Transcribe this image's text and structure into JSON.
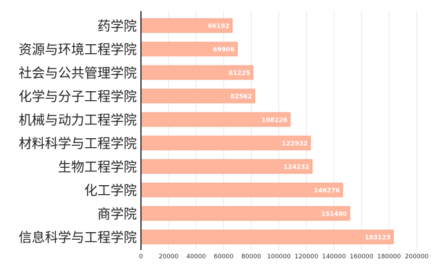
{
  "chart_data": {
    "type": "bar",
    "orientation": "horizontal",
    "categories": [
      "药学院",
      "资源与环境工程学院",
      "社会与公共管理学院",
      "化学与分子工程学院",
      "机械与动力工程学院",
      "材料科学与工程学院",
      "生物工程学院",
      "化工学院",
      "商学院",
      "信息科学与工程学院"
    ],
    "values": [
      66192,
      69906,
      81225,
      82562,
      108226,
      122932,
      124232,
      146276,
      151480,
      183123
    ],
    "xlim": [
      0,
      200000
    ],
    "xticks": [
      0,
      20000,
      40000,
      60000,
      80000,
      100000,
      120000,
      140000,
      160000,
      180000,
      200000
    ],
    "grid": true,
    "legend": "none",
    "bar_color": "#ffb49c",
    "bar_edge_color": "#f7a487",
    "data_labels": true
  }
}
